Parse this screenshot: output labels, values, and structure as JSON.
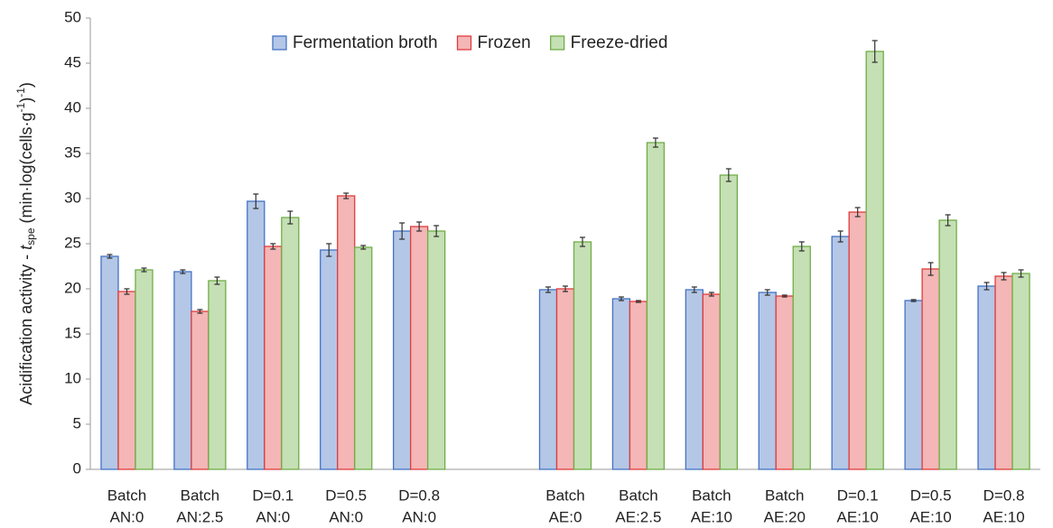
{
  "chart_data": {
    "type": "bar",
    "y_label": [
      "Acidification activity - ",
      "t",
      "spe",
      " (min·log(cells·g",
      "-1",
      ")",
      "-1",
      ")"
    ],
    "categories": [
      [
        "Batch",
        "AN:0"
      ],
      [
        "Batch",
        "AN:2.5"
      ],
      [
        "D=0.1",
        "AN:0"
      ],
      [
        "D=0.5",
        "AN:0"
      ],
      [
        "D=0.8",
        "AN:0"
      ],
      null,
      [
        "Batch",
        "AE:0"
      ],
      [
        "Batch",
        "AE:2.5"
      ],
      [
        "Batch",
        "AE:10"
      ],
      [
        "Batch",
        "AE:20"
      ],
      [
        "D=0.1",
        "AE:10"
      ],
      [
        "D=0.5",
        "AE:10"
      ],
      [
        "D=0.8",
        "AE:10"
      ]
    ],
    "series": [
      {
        "name": "Fermentation broth",
        "color": "#b4c7e7",
        "edge_color": "#4472c4",
        "values": [
          23.6,
          21.9,
          29.7,
          24.3,
          26.4,
          null,
          19.9,
          18.9,
          19.9,
          19.6,
          25.8,
          18.7,
          20.3
        ],
        "errors": [
          0.2,
          0.2,
          0.8,
          0.7,
          0.9,
          null,
          0.3,
          0.2,
          0.3,
          0.3,
          0.6,
          0.1,
          0.4
        ]
      },
      {
        "name": "Frozen",
        "color": "#f4b6b6",
        "edge_color": "#e03c3c",
        "values": [
          19.7,
          17.5,
          24.7,
          30.3,
          26.9,
          null,
          20.0,
          18.6,
          19.4,
          19.2,
          28.5,
          22.2,
          21.4
        ],
        "errors": [
          0.3,
          0.2,
          0.3,
          0.3,
          0.5,
          null,
          0.3,
          0.1,
          0.2,
          0.1,
          0.5,
          0.7,
          0.4
        ]
      },
      {
        "name": "Freeze-dried",
        "color": "#c5e0b4",
        "edge_color": "#70ad47",
        "values": [
          22.1,
          20.9,
          27.9,
          24.6,
          26.4,
          null,
          25.2,
          36.2,
          32.6,
          24.7,
          46.3,
          27.6,
          21.7
        ],
        "errors": [
          0.2,
          0.4,
          0.7,
          0.2,
          0.6,
          null,
          0.5,
          0.5,
          0.7,
          0.5,
          1.2,
          0.6,
          0.4
        ]
      }
    ],
    "ylim": [
      0,
      50
    ],
    "yticks": [
      0,
      5,
      10,
      15,
      20,
      25,
      30,
      35,
      40,
      45,
      50
    ],
    "grid": false,
    "legend": "top"
  }
}
